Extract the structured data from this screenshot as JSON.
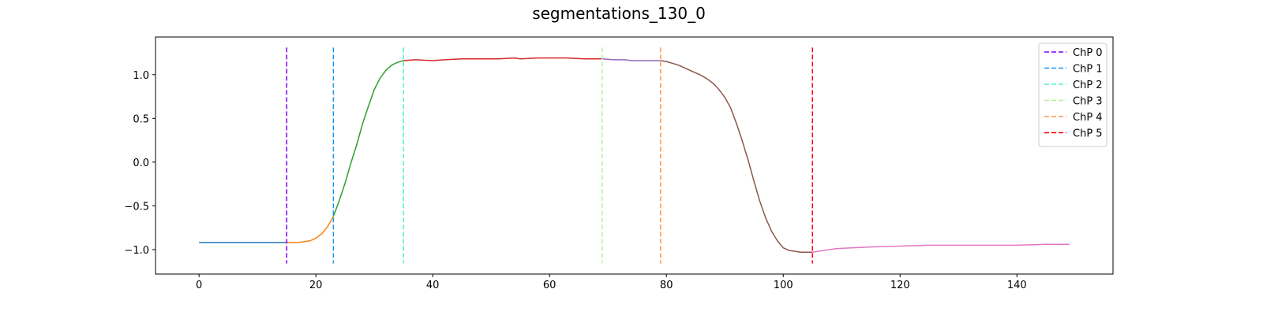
{
  "chart_data": {
    "type": "line",
    "title": "segmentations_130_0",
    "xlabel": "",
    "ylabel": "",
    "xlim": [
      -7.45,
      156.45
    ],
    "ylim": [
      -1.28,
      1.43
    ],
    "xticks": [
      0,
      20,
      40,
      60,
      80,
      100,
      120,
      140
    ],
    "yticks": [
      -1.0,
      -0.5,
      0.0,
      0.5,
      1.0
    ],
    "grid": false,
    "legend_position": "top-right",
    "series": [
      {
        "color": "#1f77b4",
        "x": [
          0,
          5,
          10,
          15
        ],
        "y": [
          -0.92,
          -0.92,
          -0.92,
          -0.92
        ]
      },
      {
        "color": "#ff7f0e",
        "x": [
          15,
          17,
          18,
          19,
          20,
          21,
          22,
          23
        ],
        "y": [
          -0.92,
          -0.92,
          -0.91,
          -0.9,
          -0.87,
          -0.82,
          -0.74,
          -0.62
        ]
      },
      {
        "color": "#2ca02c",
        "x": [
          23,
          24,
          25,
          26,
          27,
          28,
          29,
          30,
          31,
          32,
          33,
          34,
          35
        ],
        "y": [
          -0.62,
          -0.44,
          -0.24,
          -0.01,
          0.2,
          0.44,
          0.64,
          0.83,
          0.96,
          1.05,
          1.11,
          1.14,
          1.16
        ]
      },
      {
        "color": "#d62728",
        "x": [
          35,
          37,
          40,
          42,
          45,
          48,
          51,
          54,
          55,
          58,
          61,
          63,
          66,
          69
        ],
        "y": [
          1.16,
          1.17,
          1.16,
          1.17,
          1.18,
          1.18,
          1.18,
          1.19,
          1.18,
          1.19,
          1.19,
          1.19,
          1.18,
          1.18
        ]
      },
      {
        "color": "#9467bd",
        "x": [
          69,
          71,
          73,
          74,
          76,
          79
        ],
        "y": [
          1.18,
          1.17,
          1.17,
          1.16,
          1.16,
          1.16
        ]
      },
      {
        "color": "#8c564b",
        "x": [
          79,
          80,
          81,
          82,
          83,
          84,
          85,
          86,
          87,
          88,
          89,
          90,
          91,
          92,
          93,
          94,
          95,
          96,
          97,
          98,
          99,
          100,
          101,
          102,
          103,
          104,
          105
        ],
        "y": [
          1.16,
          1.15,
          1.13,
          1.11,
          1.08,
          1.05,
          1.02,
          0.99,
          0.95,
          0.9,
          0.83,
          0.74,
          0.62,
          0.44,
          0.24,
          0.02,
          -0.22,
          -0.45,
          -0.64,
          -0.79,
          -0.9,
          -0.98,
          -1.01,
          -1.02,
          -1.03,
          -1.03,
          -1.03
        ]
      },
      {
        "color": "#e377c2",
        "x": [
          105,
          107,
          109,
          112,
          115,
          120,
          125,
          130,
          135,
          140,
          145,
          149
        ],
        "y": [
          -1.03,
          -1.01,
          -0.99,
          -0.98,
          -0.97,
          -0.96,
          -0.95,
          -0.95,
          -0.95,
          -0.95,
          -0.94,
          -0.94
        ]
      }
    ],
    "changepoints": [
      {
        "name": "ChP 0",
        "x": 15,
        "color": "#8000ff"
      },
      {
        "name": "ChP 1",
        "x": 23,
        "color": "#1996f3"
      },
      {
        "name": "ChP 2",
        "x": 35,
        "color": "#4df3ce"
      },
      {
        "name": "ChP 3",
        "x": 69,
        "color": "#b2f396"
      },
      {
        "name": "ChP 4",
        "x": 79,
        "color": "#ff964f"
      },
      {
        "name": "ChP 5",
        "x": 105,
        "color": "#ff0000"
      }
    ]
  }
}
